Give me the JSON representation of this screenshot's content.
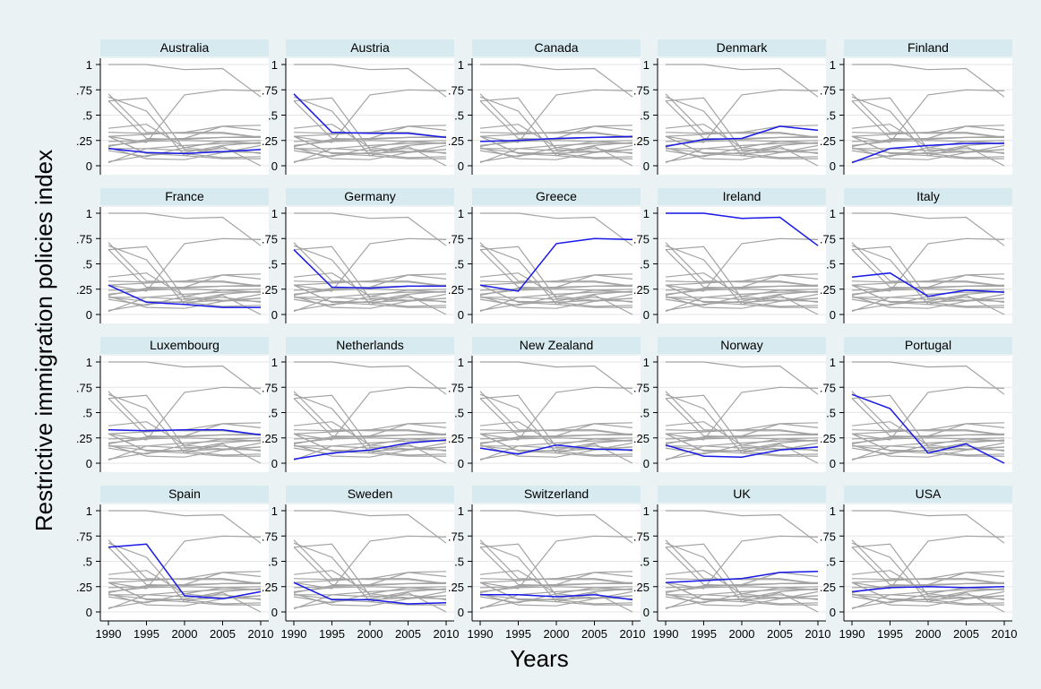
{
  "colors": {
    "outer_background": "#eaf2f3",
    "plot_background": "#ffffff",
    "strip_background": "#d6eaf0",
    "gridline": "#e5e5e5",
    "background_series": "#a3a3a3",
    "highlight_series": "#1a1aeb"
  },
  "chart_data": {
    "type": "line",
    "layout": "small multiples, 4 rows x 5 columns; each panel highlights one country in blue over all countries in gray",
    "xlabel": "Years",
    "ylabel": "Restrictive immigration policies index",
    "xlim": [
      1990,
      2010
    ],
    "ylim": [
      0,
      1
    ],
    "x_ticks": [
      1990,
      1995,
      2000,
      2005,
      2010
    ],
    "y_ticks": [
      0,
      0.25,
      0.5,
      0.75,
      1
    ],
    "y_tick_labels": [
      "0",
      ".25",
      ".5",
      ".75",
      "1"
    ],
    "grid": true,
    "x": [
      1990,
      1995,
      2000,
      2005,
      2010
    ],
    "series": [
      {
        "name": "Australia",
        "values": [
          0.17,
          0.13,
          0.12,
          0.14,
          0.16
        ]
      },
      {
        "name": "Austria",
        "values": [
          0.71,
          0.33,
          0.32,
          0.32,
          0.28
        ]
      },
      {
        "name": "Canada",
        "values": [
          0.24,
          0.25,
          0.27,
          0.28,
          0.29
        ]
      },
      {
        "name": "Denmark",
        "values": [
          0.19,
          0.26,
          0.27,
          0.39,
          0.35
        ]
      },
      {
        "name": "Finland",
        "values": [
          0.03,
          0.17,
          0.2,
          0.22,
          0.22
        ]
      },
      {
        "name": "France",
        "values": [
          0.29,
          0.12,
          0.1,
          0.07,
          0.07
        ]
      },
      {
        "name": "Germany",
        "values": [
          0.64,
          0.27,
          0.26,
          0.28,
          0.28
        ]
      },
      {
        "name": "Greece",
        "values": [
          0.29,
          0.23,
          0.7,
          0.75,
          0.74
        ]
      },
      {
        "name": "Ireland",
        "values": [
          1.0,
          1.0,
          0.95,
          0.96,
          0.68
        ]
      },
      {
        "name": "Italy",
        "values": [
          0.37,
          0.41,
          0.18,
          0.24,
          0.22
        ]
      },
      {
        "name": "Luxembourg",
        "values": [
          0.33,
          0.32,
          0.33,
          0.33,
          0.28
        ]
      },
      {
        "name": "Netherlands",
        "values": [
          0.04,
          0.1,
          0.13,
          0.2,
          0.23
        ]
      },
      {
        "name": "New Zealand",
        "values": [
          0.15,
          0.09,
          0.18,
          0.14,
          0.13
        ]
      },
      {
        "name": "Norway",
        "values": [
          0.18,
          0.07,
          0.06,
          0.13,
          0.16
        ]
      },
      {
        "name": "Portugal",
        "values": [
          0.68,
          0.54,
          0.1,
          0.19,
          0.0
        ]
      },
      {
        "name": "Spain",
        "values": [
          0.64,
          0.67,
          0.16,
          0.13,
          0.2
        ]
      },
      {
        "name": "Sweden",
        "values": [
          0.29,
          0.12,
          0.12,
          0.08,
          0.09
        ]
      },
      {
        "name": "Switzerland",
        "values": [
          0.17,
          0.17,
          0.15,
          0.17,
          0.12
        ]
      },
      {
        "name": "UK",
        "values": [
          0.29,
          0.31,
          0.33,
          0.39,
          0.4
        ]
      },
      {
        "name": "USA",
        "values": [
          0.2,
          0.24,
          0.25,
          0.24,
          0.25
        ]
      }
    ]
  }
}
